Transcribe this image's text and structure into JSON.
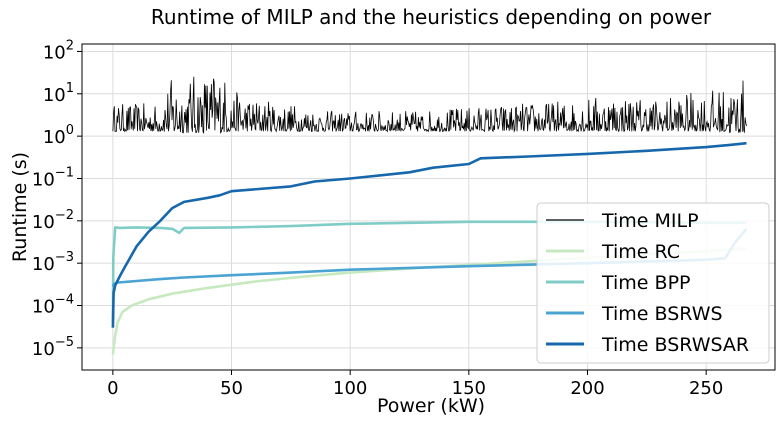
{
  "chart_data": {
    "type": "line",
    "title": "Runtime of MILP and the heuristics depending on power",
    "xlabel": "Power (kW)",
    "ylabel": "Runtime (s)",
    "xlim": [
      -13,
      279
    ],
    "ylim": [
      3e-06,
      150
    ],
    "yscale": "log",
    "grid": true,
    "legend_position": "bottom-right",
    "x_ticks": [
      {
        "value": 0,
        "label": "0"
      },
      {
        "value": 50,
        "label": "50"
      },
      {
        "value": 100,
        "label": "100"
      },
      {
        "value": 150,
        "label": "150"
      },
      {
        "value": 200,
        "label": "200"
      },
      {
        "value": 250,
        "label": "250"
      }
    ],
    "y_ticks": [
      {
        "value": 1e-05,
        "base": "10",
        "exp": "−5"
      },
      {
        "value": 0.0001,
        "base": "10",
        "exp": "−4"
      },
      {
        "value": 0.001,
        "base": "10",
        "exp": "−3"
      },
      {
        "value": 0.01,
        "base": "10",
        "exp": "−2"
      },
      {
        "value": 0.1,
        "base": "10",
        "exp": "−1"
      },
      {
        "value": 1,
        "base": "10",
        "exp": "0"
      },
      {
        "value": 10,
        "base": "10",
        "exp": "1"
      },
      {
        "value": 100,
        "base": "10",
        "exp": "2"
      }
    ],
    "series": [
      {
        "name": "Time MILP",
        "color": "#000000",
        "noisy": true,
        "x": [
          0,
          10,
          20,
          25,
          30,
          40,
          45,
          50,
          60,
          75,
          90,
          110,
          130,
          150,
          170,
          190,
          210,
          230,
          250,
          260,
          267
        ],
        "low": [
          1.3,
          1.3,
          1.3,
          1.2,
          1.2,
          1.2,
          1.2,
          1.3,
          1.3,
          1.3,
          1.3,
          1.3,
          1.3,
          1.3,
          1.3,
          1.3,
          1.3,
          1.3,
          1.3,
          1.2,
          1.2
        ],
        "high": [
          6,
          6,
          6,
          25,
          25,
          35,
          40,
          12,
          8,
          6,
          4,
          4,
          4,
          5,
          6,
          7,
          10,
          8,
          12,
          15,
          25
        ]
      },
      {
        "name": "Time RC",
        "color": "#c7e9c0",
        "x": [
          0,
          0.5,
          1,
          2,
          4,
          8,
          15,
          25,
          40,
          60,
          80,
          100,
          130,
          160,
          190,
          220,
          250,
          260,
          267
        ],
        "y": [
          7e-06,
          1.2e-05,
          2e-05,
          4e-05,
          7e-05,
          0.0001,
          0.00014,
          0.00019,
          0.00026,
          0.00037,
          0.00048,
          0.0006,
          0.00078,
          0.00098,
          0.00125,
          0.00155,
          0.0019,
          0.0021,
          0.0022
        ]
      },
      {
        "name": "Time BPP",
        "color": "#7fcdc6",
        "x": [
          0,
          0.2,
          1,
          3,
          10,
          20,
          25,
          28,
          30,
          50,
          75,
          100,
          150,
          200,
          250,
          267
        ],
        "y": [
          4e-05,
          0.0014,
          0.007,
          0.0068,
          0.007,
          0.0068,
          0.0065,
          0.0052,
          0.0068,
          0.007,
          0.0075,
          0.0085,
          0.0095,
          0.0095,
          0.009,
          0.009
        ]
      },
      {
        "name": "Time BSRWS",
        "color": "#4aa3d3",
        "x": [
          0,
          0.5,
          2,
          5,
          10,
          20,
          30,
          50,
          75,
          100,
          150,
          200,
          250,
          258,
          262,
          267
        ],
        "y": [
          0.00028,
          0.00032,
          0.00035,
          0.00036,
          0.00038,
          0.00042,
          0.00046,
          0.00052,
          0.0006,
          0.0007,
          0.00085,
          0.001,
          0.0012,
          0.0013,
          0.003,
          0.0065
        ]
      },
      {
        "name": "Time BSRWSAR",
        "color": "#1667ab",
        "x": [
          0,
          0.3,
          1,
          3,
          5,
          10,
          15,
          20,
          25,
          30,
          40,
          45,
          50,
          75,
          85,
          100,
          125,
          135,
          150,
          155,
          175,
          200,
          225,
          250,
          260,
          267
        ],
        "y": [
          3e-05,
          0.0002,
          0.0003,
          0.0005,
          0.0008,
          0.0025,
          0.0055,
          0.01,
          0.02,
          0.028,
          0.035,
          0.04,
          0.05,
          0.065,
          0.085,
          0.1,
          0.14,
          0.18,
          0.22,
          0.3,
          0.33,
          0.38,
          0.45,
          0.55,
          0.62,
          0.68
        ]
      }
    ]
  }
}
